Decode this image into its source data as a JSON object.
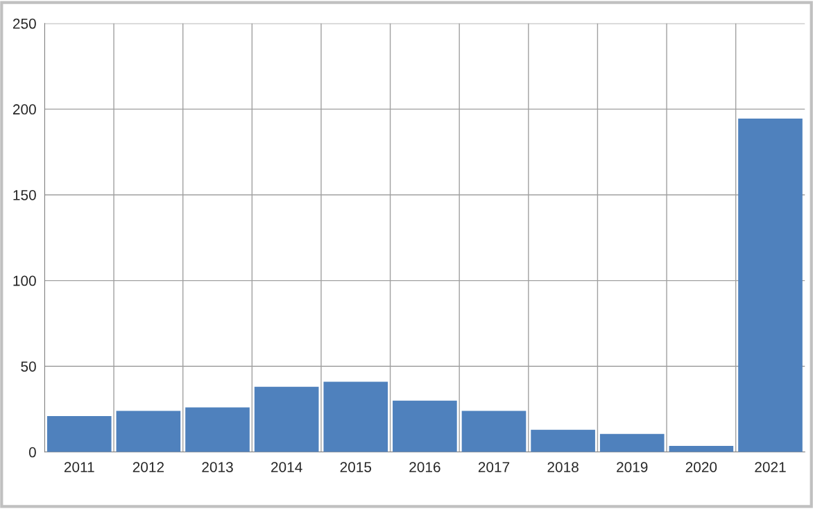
{
  "chart_data": {
    "type": "bar",
    "categories": [
      "2011",
      "2012",
      "2013",
      "2014",
      "2015",
      "2016",
      "2017",
      "2018",
      "2019",
      "2020",
      "2021"
    ],
    "values": [
      21,
      24,
      26,
      38,
      41,
      30,
      24,
      13,
      10.5,
      3.6,
      194.5
    ],
    "color": "#4f81bd",
    "ylim": [
      0,
      250
    ],
    "yticks": [
      0,
      50,
      100,
      150,
      200,
      250
    ],
    "grid": true
  }
}
